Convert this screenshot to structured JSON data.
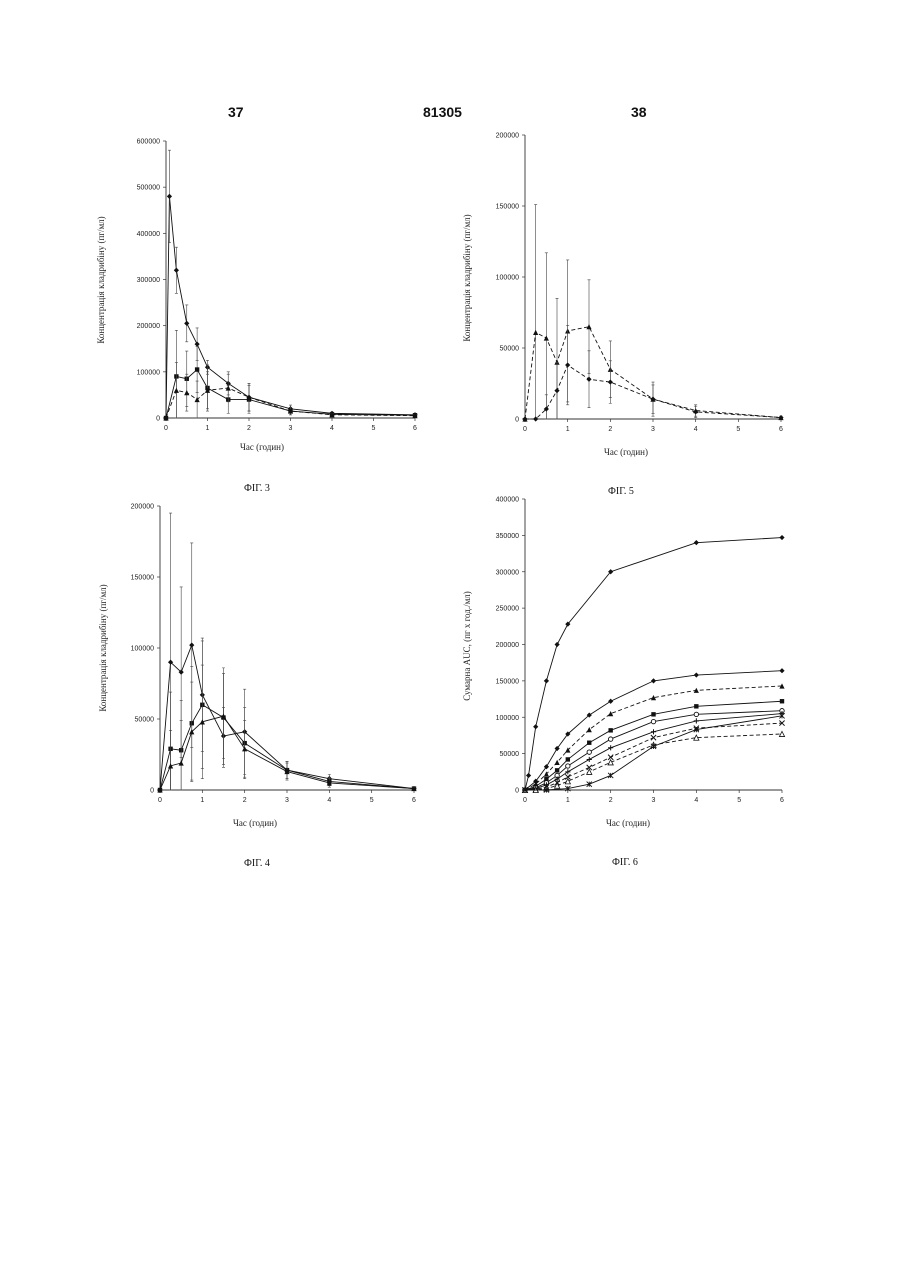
{
  "header": {
    "left": "37",
    "center": "81305",
    "right": "38"
  },
  "chart_data": [
    {
      "type": "line",
      "caption": "ФІГ. 3",
      "xlabel": "Час (годин)",
      "ylabel": "Концентрація кладрибіну (пг/мл)",
      "xlim": [
        0,
        6
      ],
      "ylim": [
        0,
        600000
      ],
      "xticks": [
        0,
        1,
        2,
        3,
        4,
        5,
        6
      ],
      "xtick_labels": [
        "0",
        "1",
        "2",
        "3",
        "4",
        "5",
        "6"
      ],
      "yticks": [
        0,
        100000,
        200000,
        300000,
        400000,
        500000,
        600000
      ],
      "ytick_labels": [
        "0",
        "100000",
        "200000",
        "300000",
        "400000",
        "500000",
        "600000"
      ],
      "series": [
        {
          "style": "solid",
          "marker": "diamond",
          "x": [
            0,
            0.083,
            0.25,
            0.5,
            0.75,
            1,
            1.5,
            2,
            3,
            4,
            6
          ],
          "y": [
            0,
            480000,
            320000,
            205000,
            160000,
            110000,
            75000,
            45000,
            20000,
            10000,
            7000
          ],
          "err": [
            0,
            100000,
            50000,
            40000,
            35000,
            15000,
            25000,
            30000,
            8000,
            3000,
            2000
          ]
        },
        {
          "style": "solid",
          "marker": "square",
          "x": [
            0,
            0.25,
            0.5,
            0.75,
            1,
            1.5,
            2,
            3,
            4,
            6
          ],
          "y": [
            0,
            90000,
            85000,
            105000,
            65000,
            40000,
            40000,
            15000,
            8000,
            6000
          ],
          "err": [
            0,
            100000,
            60000,
            50000,
            50000,
            30000,
            30000,
            8000,
            3000,
            2000
          ]
        },
        {
          "style": "dashed",
          "marker": "triangle",
          "x": [
            0,
            0.25,
            0.5,
            0.75,
            1,
            1.5,
            2,
            3,
            4,
            6
          ],
          "y": [
            0,
            60000,
            55000,
            40000,
            60000,
            65000,
            45000,
            15000,
            7000,
            5000
          ],
          "err": [
            0,
            60000,
            40000,
            40000,
            40000,
            30000,
            30000,
            8000,
            3000,
            2000
          ]
        }
      ]
    },
    {
      "type": "line",
      "caption": "ФІГ. 5",
      "xlabel": "Час (годин)",
      "ylabel": "Концентрація кладрибіну (пг/мл)",
      "xlim": [
        0,
        6
      ],
      "ylim": [
        0,
        200000
      ],
      "xticks": [
        0,
        1,
        2,
        3,
        4,
        5,
        6
      ],
      "xtick_labels": [
        "0",
        "1",
        "2",
        "3",
        "4",
        "5",
        "6"
      ],
      "yticks": [
        0,
        50000,
        100000,
        150000,
        200000
      ],
      "ytick_labels": [
        "0",
        "50000",
        "100000",
        "150000",
        "200000"
      ],
      "series": [
        {
          "style": "dashed",
          "marker": "triangle",
          "x": [
            0,
            0.25,
            0.5,
            0.75,
            1,
            1.5,
            2,
            3,
            4,
            6
          ],
          "y": [
            0,
            61000,
            57000,
            40000,
            62000,
            65000,
            35000,
            14000,
            6000,
            1000
          ],
          "err": [
            0,
            90000,
            60000,
            45000,
            50000,
            33000,
            20000,
            12000,
            4000,
            1000
          ]
        },
        {
          "style": "dashed",
          "marker": "diamond",
          "x": [
            0,
            0.25,
            0.5,
            0.75,
            1,
            1.5,
            2,
            3,
            4,
            6
          ],
          "y": [
            0,
            0,
            7000,
            20000,
            38000,
            28000,
            26000,
            14000,
            5000,
            1000
          ],
          "err": [
            0,
            0,
            10000,
            20000,
            28000,
            20000,
            15000,
            10000,
            4000,
            1000
          ]
        }
      ]
    },
    {
      "type": "line",
      "caption": "ФІГ. 4",
      "xlabel": "Час (годин)",
      "ylabel": "Концентрація кладрибіну (пг/мл)",
      "xlim": [
        0,
        6
      ],
      "ylim": [
        0,
        200000
      ],
      "xticks": [
        0,
        1,
        2,
        3,
        4,
        5,
        6
      ],
      "xtick_labels": [
        "0",
        "1",
        "2",
        "3",
        "4",
        "5",
        "6"
      ],
      "yticks": [
        0,
        50000,
        100000,
        150000,
        200000
      ],
      "ytick_labels": [
        "0",
        "50000",
        "100000",
        "150000",
        "200000"
      ],
      "series": [
        {
          "style": "solid",
          "marker": "diamond",
          "x": [
            0,
            0.25,
            0.5,
            0.75,
            1,
            1.5,
            2,
            3,
            4,
            6
          ],
          "y": [
            0,
            90000,
            83000,
            102000,
            67000,
            38000,
            41000,
            14000,
            8000,
            1000
          ],
          "err": [
            0,
            105000,
            60000,
            72000,
            40000,
            20000,
            30000,
            6000,
            3000,
            1000
          ]
        },
        {
          "style": "solid",
          "marker": "square",
          "x": [
            0,
            0.25,
            0.5,
            0.75,
            1,
            1.5,
            2,
            3,
            4,
            6
          ],
          "y": [
            0,
            29000,
            28000,
            47000,
            60000,
            51000,
            33000,
            14000,
            6000,
            1000
          ],
          "err": [
            0,
            40000,
            35000,
            40000,
            45000,
            35000,
            25000,
            6000,
            3000,
            1000
          ]
        },
        {
          "style": "solid",
          "marker": "triangle",
          "x": [
            0,
            0.25,
            0.5,
            0.75,
            1,
            1.5,
            2,
            3,
            4,
            6
          ],
          "y": [
            0,
            17000,
            19000,
            41000,
            48000,
            52000,
            29000,
            13000,
            5000,
            1000
          ],
          "err": [
            0,
            25000,
            30000,
            35000,
            40000,
            30000,
            20000,
            6000,
            3000,
            1000
          ]
        }
      ]
    },
    {
      "type": "line",
      "caption": "ФІГ. 6",
      "xlabel": "Час (годин)",
      "ylabel": "Сумарна AUC, (пг x год./мл)",
      "xlim": [
        0,
        6
      ],
      "ylim": [
        0,
        400000
      ],
      "xticks": [
        0,
        1,
        2,
        3,
        4,
        5,
        6
      ],
      "xtick_labels": [
        "0",
        "1",
        "2",
        "3",
        "4",
        "5",
        "6"
      ],
      "yticks": [
        0,
        50000,
        100000,
        150000,
        200000,
        250000,
        300000,
        350000,
        400000
      ],
      "ytick_labels": [
        "0",
        "50000",
        "100000",
        "150000",
        "200000",
        "250000",
        "300000",
        "350000",
        "400000"
      ],
      "series": [
        {
          "style": "solid",
          "marker": "diamond",
          "x": [
            0,
            0.083,
            0.25,
            0.5,
            0.75,
            1,
            2,
            4,
            6
          ],
          "y": [
            0,
            20000,
            87000,
            150000,
            200000,
            228000,
            300000,
            340000,
            347000
          ]
        },
        {
          "style": "solid",
          "marker": "diamond",
          "x": [
            0,
            0.25,
            0.5,
            0.75,
            1,
            1.5,
            2,
            3,
            4,
            6
          ],
          "y": [
            0,
            12000,
            32000,
            57000,
            77000,
            103000,
            122000,
            150000,
            158000,
            164000
          ]
        },
        {
          "style": "dashed",
          "marker": "triangle",
          "x": [
            0,
            0.25,
            0.5,
            0.75,
            1,
            1.5,
            2,
            3,
            4,
            6
          ],
          "y": [
            0,
            8000,
            22000,
            38000,
            55000,
            83000,
            105000,
            127000,
            137000,
            143000
          ]
        },
        {
          "style": "solid",
          "marker": "square",
          "x": [
            0,
            0.25,
            0.5,
            0.75,
            1,
            1.5,
            2,
            3,
            4,
            6
          ],
          "y": [
            0,
            5000,
            15000,
            27000,
            42000,
            65000,
            82000,
            104000,
            115000,
            122000
          ]
        },
        {
          "style": "solid",
          "marker": "circle",
          "x": [
            0,
            0.25,
            0.5,
            0.75,
            1,
            1.5,
            2,
            3,
            4,
            6
          ],
          "y": [
            0,
            3000,
            10000,
            20000,
            33000,
            52000,
            70000,
            94000,
            104000,
            109000
          ]
        },
        {
          "style": "solid",
          "marker": "plus",
          "x": [
            0,
            0.25,
            0.5,
            0.75,
            1,
            1.5,
            2,
            3,
            4,
            6
          ],
          "y": [
            0,
            2000,
            7000,
            15000,
            25000,
            42000,
            58000,
            80000,
            95000,
            105000
          ]
        },
        {
          "style": "dashed",
          "marker": "cross",
          "x": [
            0,
            0.25,
            0.5,
            0.75,
            1,
            1.5,
            2,
            3,
            4,
            6
          ],
          "y": [
            0,
            1000,
            4000,
            10000,
            18000,
            31000,
            45000,
            72000,
            85000,
            92000
          ]
        },
        {
          "style": "dashed",
          "marker": "open-triangle",
          "x": [
            0,
            0.25,
            0.5,
            0.75,
            1,
            1.5,
            2,
            3,
            4,
            6
          ],
          "y": [
            0,
            0,
            2000,
            6000,
            12000,
            25000,
            38000,
            62000,
            72000,
            77000
          ]
        },
        {
          "style": "solid",
          "marker": "star",
          "x": [
            0,
            0.5,
            1,
            1.5,
            2,
            3,
            4,
            6
          ],
          "y": [
            0,
            0,
            2000,
            8000,
            20000,
            60000,
            83000,
            102000
          ]
        }
      ]
    }
  ]
}
